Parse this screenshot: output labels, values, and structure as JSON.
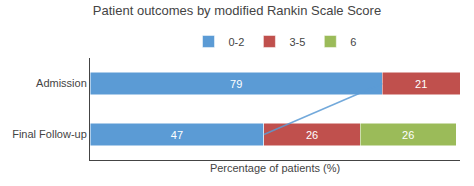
{
  "chart_data": {
    "type": "bar",
    "orientation": "horizontal",
    "stacked": true,
    "title": "Patient outcomes by modified Rankin Scale Score",
    "xlabel": "Percentage of patients (%)",
    "categories": [
      "Admission",
      "Final Follow-up"
    ],
    "series": [
      {
        "name": "0-2",
        "color": "#5b9bd5",
        "values": [
          79,
          47
        ]
      },
      {
        "name": "3-5",
        "color": "#c0504d",
        "values": [
          21,
          26
        ]
      },
      {
        "name": "6",
        "color": "#9bbb59",
        "values": [
          0,
          26
        ]
      },
      {
        "type": "line",
        "color": "#5b9bd5",
        "values": [
          79,
          47
        ]
      }
    ],
    "xlim": [
      0,
      100
    ],
    "data_labels": true,
    "tick_labels": "y",
    "grid": false,
    "legend": "top"
  }
}
